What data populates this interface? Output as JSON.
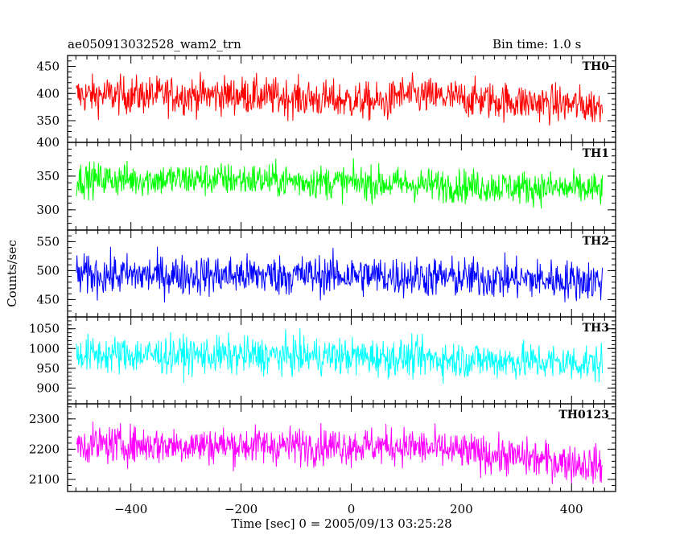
{
  "header": {
    "title": "ae050913032528_wam2_trn",
    "bin_time": "Bin time: 1.0 s"
  },
  "chart_data": {
    "type": "line",
    "xlabel": "Time [sec] 0 = 2005/09/13 03:25:28",
    "ylabel": "Counts/sec",
    "xlim": [
      -515,
      480
    ],
    "x_range_data": [
      -499,
      456
    ],
    "x_ticks": [
      -400,
      -200,
      0,
      200,
      400
    ],
    "grid": false,
    "panels": [
      {
        "name": "TH0",
        "color": "#ff0000",
        "ylim": [
          310,
          470
        ],
        "y_ticks": [
          350,
          400,
          450
        ],
        "profile": [
          {
            "x": -499,
            "y": 397
          },
          {
            "x": -200,
            "y": 397
          },
          {
            "x": 70,
            "y": 383
          },
          {
            "x": 80,
            "y": 398
          },
          {
            "x": 300,
            "y": 385
          },
          {
            "x": 456,
            "y": 376
          }
        ],
        "noise_amplitude": 28
      },
      {
        "name": "TH1",
        "color": "#00ff00",
        "ylim": [
          270,
          400
        ],
        "y_ticks": [
          300,
          350,
          400
        ],
        "profile": [
          {
            "x": -499,
            "y": 345
          },
          {
            "x": -200,
            "y": 345
          },
          {
            "x": 100,
            "y": 338
          },
          {
            "x": 456,
            "y": 330
          }
        ],
        "noise_amplitude": 20
      },
      {
        "name": "TH2",
        "color": "#0000ff",
        "ylim": [
          420,
          570
        ],
        "y_ticks": [
          450,
          500,
          550
        ],
        "profile": [
          {
            "x": -499,
            "y": 492
          },
          {
            "x": 0,
            "y": 492
          },
          {
            "x": 456,
            "y": 482
          }
        ],
        "noise_amplitude": 28
      },
      {
        "name": "TH3",
        "color": "#00ffff",
        "ylim": [
          860,
          1080
        ],
        "y_ticks": [
          900,
          950,
          1000,
          1050
        ],
        "profile": [
          {
            "x": -499,
            "y": 985
          },
          {
            "x": 0,
            "y": 980
          },
          {
            "x": 456,
            "y": 962
          }
        ],
        "noise_amplitude": 38
      },
      {
        "name": "TH0123",
        "color": "#ff00ff",
        "ylim": [
          2060,
          2350
        ],
        "y_ticks": [
          2100,
          2200,
          2300
        ],
        "profile": [
          {
            "x": -499,
            "y": 2215
          },
          {
            "x": 100,
            "y": 2210
          },
          {
            "x": 456,
            "y": 2145
          }
        ],
        "noise_amplitude": 50
      }
    ]
  }
}
